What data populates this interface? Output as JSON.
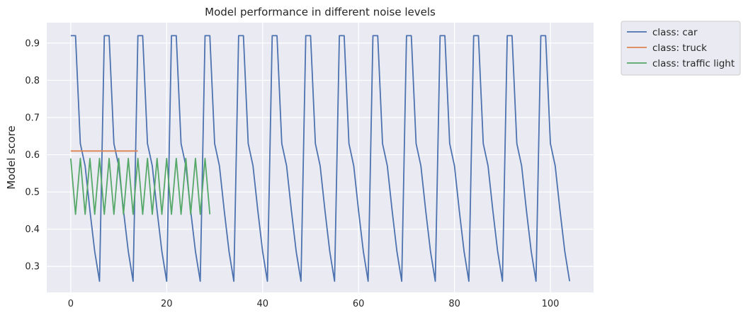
{
  "chart_data": {
    "type": "line",
    "title": "Model performance in different noise levels",
    "xlabel": "",
    "ylabel": "Model score",
    "xlim": [
      -5,
      109
    ],
    "ylim": [
      0.23,
      0.955
    ],
    "xticks": [
      0,
      20,
      40,
      60,
      80,
      100
    ],
    "yticks": [
      0.3,
      0.4,
      0.5,
      0.6,
      0.7,
      0.8,
      0.9
    ],
    "grid": true,
    "legend_placement": "outside-top-right",
    "background": "#EAEAF2",
    "series": [
      {
        "name": "class: car",
        "color": "#4C72B0",
        "x": [
          0,
          1,
          2,
          3,
          4,
          5,
          6,
          7,
          8,
          9,
          10,
          11,
          12,
          13,
          14,
          15,
          16,
          17,
          18,
          19,
          20,
          21,
          22,
          23,
          24,
          25,
          26,
          27,
          28,
          29,
          30,
          31,
          32,
          33,
          34,
          35,
          36,
          37,
          38,
          39,
          40,
          41,
          42,
          43,
          44,
          45,
          46,
          47,
          48,
          49,
          50,
          51,
          52,
          53,
          54,
          55,
          56,
          57,
          58,
          59,
          60,
          61,
          62,
          63,
          64,
          65,
          66,
          67,
          68,
          69,
          70,
          71,
          72,
          73,
          74,
          75,
          76,
          77,
          78,
          79,
          80,
          81,
          82,
          83,
          84,
          85,
          86,
          87,
          88,
          89,
          90,
          91,
          92,
          93,
          94,
          95,
          96,
          97,
          98,
          99,
          100,
          101,
          102,
          103,
          104
        ],
        "y": [
          0.92,
          0.92,
          0.63,
          0.57,
          0.45,
          0.34,
          0.26,
          0.92,
          0.92,
          0.63,
          0.57,
          0.45,
          0.34,
          0.26,
          0.92,
          0.92,
          0.63,
          0.57,
          0.45,
          0.34,
          0.26,
          0.92,
          0.92,
          0.63,
          0.57,
          0.45,
          0.34,
          0.26,
          0.92,
          0.92,
          0.63,
          0.57,
          0.45,
          0.34,
          0.26,
          0.92,
          0.92,
          0.63,
          0.57,
          0.45,
          0.34,
          0.26,
          0.92,
          0.92,
          0.63,
          0.57,
          0.45,
          0.34,
          0.26,
          0.92,
          0.92,
          0.63,
          0.57,
          0.45,
          0.34,
          0.26,
          0.92,
          0.92,
          0.63,
          0.57,
          0.45,
          0.34,
          0.26,
          0.92,
          0.92,
          0.63,
          0.57,
          0.45,
          0.34,
          0.26,
          0.92,
          0.92,
          0.63,
          0.57,
          0.45,
          0.34,
          0.26,
          0.92,
          0.92,
          0.63,
          0.57,
          0.45,
          0.34,
          0.26,
          0.92,
          0.92,
          0.63,
          0.57,
          0.45,
          0.34,
          0.26,
          0.92,
          0.92,
          0.63,
          0.57,
          0.45,
          0.34,
          0.26,
          0.92,
          0.92,
          0.63,
          0.57,
          0.45,
          0.34,
          0.26
        ]
      },
      {
        "name": "class: truck",
        "color": "#DD8452",
        "x": [
          0,
          1,
          2,
          3,
          4,
          5,
          6,
          7,
          8,
          9,
          10,
          11,
          12,
          13,
          14
        ],
        "y": [
          0.61,
          0.61,
          0.61,
          0.61,
          0.61,
          0.61,
          0.61,
          0.61,
          0.61,
          0.61,
          0.61,
          0.61,
          0.61,
          0.61,
          0.61
        ]
      },
      {
        "name": "class: traffic light",
        "color": "#55A868",
        "x": [
          0,
          1,
          2,
          3,
          4,
          5,
          6,
          7,
          8,
          9,
          10,
          11,
          12,
          13,
          14,
          15,
          16,
          17,
          18,
          19,
          20,
          21,
          22,
          23,
          24,
          25,
          26,
          27,
          28,
          29
        ],
        "y": [
          0.59,
          0.44,
          0.59,
          0.44,
          0.59,
          0.44,
          0.59,
          0.44,
          0.59,
          0.44,
          0.59,
          0.44,
          0.59,
          0.44,
          0.59,
          0.44,
          0.59,
          0.44,
          0.59,
          0.44,
          0.59,
          0.44,
          0.59,
          0.44,
          0.59,
          0.44,
          0.59,
          0.44,
          0.59,
          0.44
        ]
      }
    ]
  }
}
